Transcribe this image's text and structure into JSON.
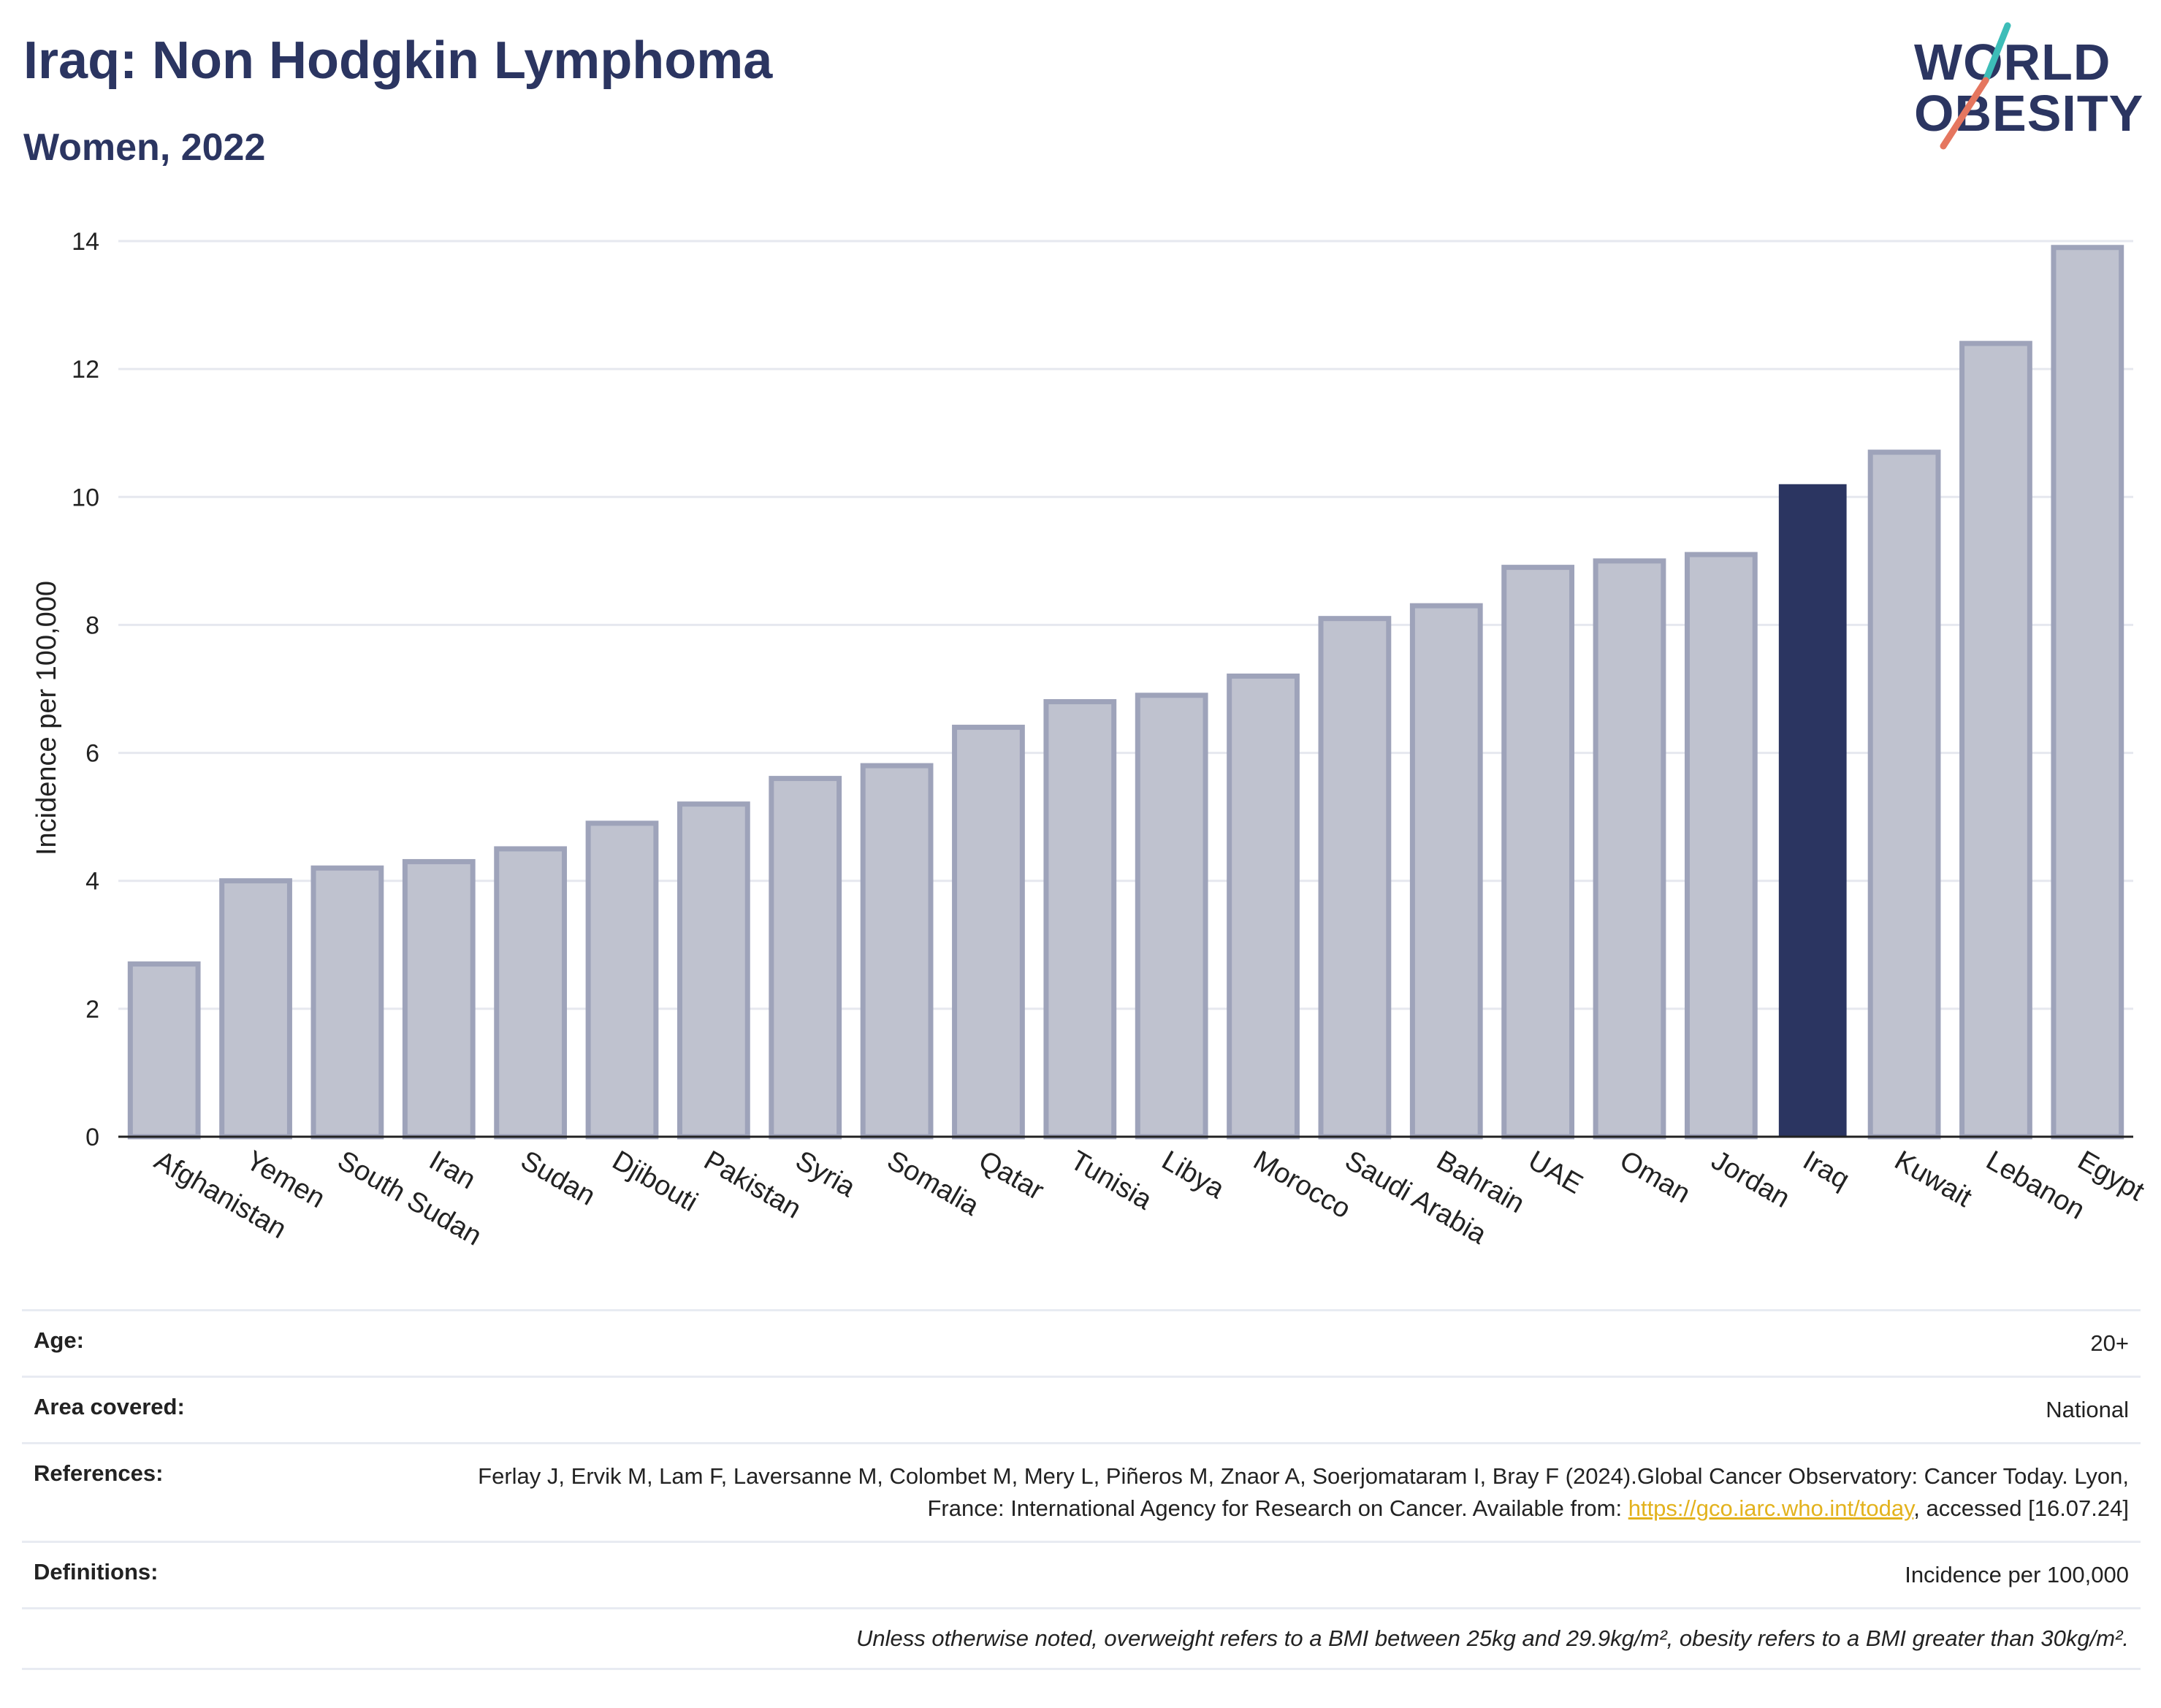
{
  "header": {
    "title": "Iraq: Non Hodgkin Lymphoma",
    "subtitle": "Women, 2022"
  },
  "logo": {
    "line1": "WORLD",
    "line2": "OBESITY",
    "colors": {
      "text": "#2b3561",
      "slash_top": "#3dbdb8",
      "slash_bottom": "#e5765f"
    }
  },
  "colors": {
    "bar_default": "#bfc2cf",
    "bar_border": "#9ea3ba",
    "bar_highlight": "#2b3561",
    "grid": "#e6e8ef",
    "link": "#e3b21d"
  },
  "chart_data": {
    "type": "bar",
    "categories": [
      "Afghanistan",
      "Yemen",
      "South Sudan",
      "Iran",
      "Sudan",
      "Djibouti",
      "Pakistan",
      "Syria",
      "Somalia",
      "Qatar",
      "Tunisia",
      "Libya",
      "Morocco",
      "Saudi Arabia",
      "Bahrain",
      "UAE",
      "Oman",
      "Jordan",
      "Iraq",
      "Kuwait",
      "Lebanon",
      "Egypt"
    ],
    "values": [
      2.7,
      4.0,
      4.2,
      4.3,
      4.5,
      4.9,
      5.2,
      5.6,
      5.8,
      6.4,
      6.8,
      6.9,
      7.2,
      8.1,
      8.3,
      8.9,
      9.0,
      9.1,
      10.2,
      10.7,
      12.4,
      13.9
    ],
    "highlight": "Iraq",
    "ylabel": "Incidence per 100,000",
    "ylim": [
      0,
      14
    ],
    "yticks": [
      0,
      2,
      4,
      6,
      8,
      10,
      12,
      14
    ],
    "grid": true
  },
  "info": {
    "age": {
      "label": "Age:",
      "value": "20+"
    },
    "area": {
      "label": "Area covered:",
      "value": "National"
    },
    "references": {
      "label": "References:",
      "text_1": "Ferlay J, Ervik M, Lam F, Laversanne M, Colombet M, Mery L, Piñeros M, Znaor A, Soerjomataram I, Bray F (2024).Global Cancer Observatory: Cancer Today. Lyon, France: International Agency for Research on Cancer. Available from: ",
      "link": "https://gco.iarc.who.int/today",
      "text_2": ", accessed [16.07.24]"
    },
    "definitions": {
      "label": "Definitions:",
      "value": "Incidence per 100,000"
    },
    "note": "Unless otherwise noted, overweight refers to a BMI between 25kg and 29.9kg/m², obesity refers to a BMI greater than 30kg/m²."
  }
}
